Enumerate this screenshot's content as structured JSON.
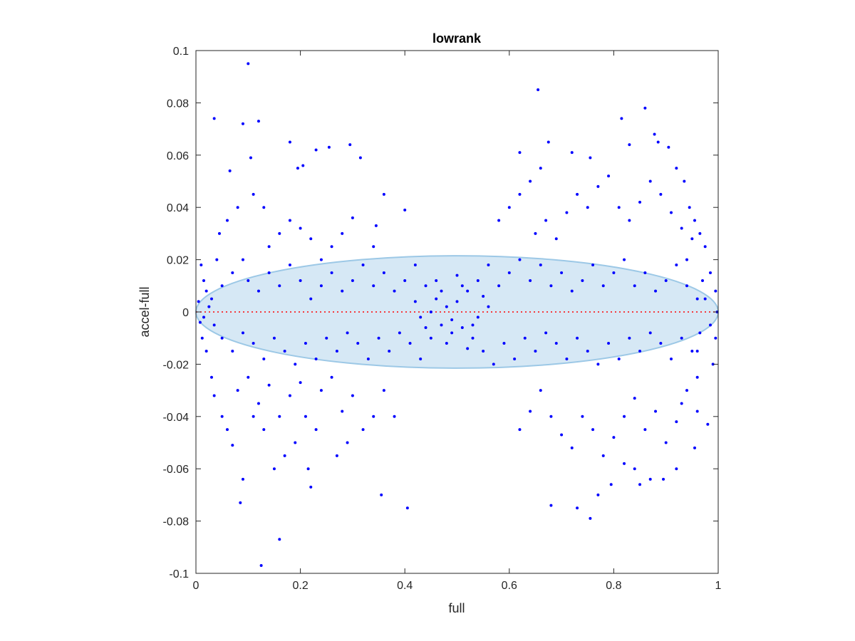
{
  "chart_data": {
    "type": "scatter",
    "title": "lowrank",
    "xlabel": "full",
    "ylabel": "accel-full",
    "xlim": [
      0,
      1
    ],
    "ylim": [
      -0.1,
      0.1
    ],
    "xticks": [
      0,
      0.2,
      0.4,
      0.6,
      0.8,
      1
    ],
    "xtick_labels": [
      "0",
      "0.2",
      "0.4",
      "0.6",
      "0.8",
      "1"
    ],
    "yticks": [
      0.1,
      0.08,
      0.06,
      0.04,
      0.02,
      0,
      -0.02,
      -0.04,
      -0.06,
      -0.08,
      -0.1
    ],
    "ytick_labels": [
      "0.1",
      "0.08",
      "0.06",
      "0.04",
      "0.02",
      "0",
      "-0.02",
      "-0.04",
      "-0.06",
      "-0.08",
      "-0.1"
    ],
    "grid": false,
    "reference_line": {
      "y": 0,
      "style": "dotted",
      "color": "#ff0000"
    },
    "ellipse": {
      "center_x": 0.5,
      "center_y": 0,
      "x_radius": 0.5,
      "y_radius": 0.0215,
      "fill": "#d6e8f5",
      "stroke": "#9cc8e6"
    },
    "series": [
      {
        "color": "#0000ff",
        "points": [
          [
            0.1,
            0.095
          ],
          [
            0.655,
            0.085
          ],
          [
            0.035,
            0.074
          ],
          [
            0.12,
            0.073
          ],
          [
            0.09,
            0.072
          ],
          [
            0.815,
            0.074
          ],
          [
            0.86,
            0.078
          ],
          [
            0.878,
            0.068
          ],
          [
            0.885,
            0.065
          ],
          [
            0.18,
            0.065
          ],
          [
            0.295,
            0.064
          ],
          [
            0.23,
            0.062
          ],
          [
            0.255,
            0.063
          ],
          [
            0.105,
            0.059
          ],
          [
            0.315,
            0.059
          ],
          [
            0.675,
            0.065
          ],
          [
            0.62,
            0.061
          ],
          [
            0.72,
            0.061
          ],
          [
            0.905,
            0.063
          ],
          [
            0.755,
            0.059
          ],
          [
            0.83,
            0.064
          ],
          [
            0.195,
            0.055
          ],
          [
            0.205,
            0.056
          ],
          [
            0.065,
            0.054
          ],
          [
            0.01,
            0.018
          ],
          [
            0.015,
            0.012
          ],
          [
            0.02,
            0.008
          ],
          [
            0.005,
            0.004
          ],
          [
            0.008,
            -0.004
          ],
          [
            0.012,
            -0.01
          ],
          [
            0.02,
            -0.015
          ],
          [
            0.03,
            -0.025
          ],
          [
            0.035,
            -0.032
          ],
          [
            0.05,
            -0.04
          ],
          [
            0.06,
            -0.045
          ],
          [
            0.07,
            -0.051
          ],
          [
            0.09,
            -0.064
          ],
          [
            0.085,
            -0.073
          ],
          [
            0.16,
            -0.087
          ],
          [
            0.125,
            -0.097
          ],
          [
            0.22,
            -0.067
          ],
          [
            0.215,
            -0.06
          ],
          [
            0.355,
            -0.07
          ],
          [
            0.405,
            -0.075
          ],
          [
            0.68,
            -0.074
          ],
          [
            0.73,
            -0.075
          ],
          [
            0.755,
            -0.079
          ],
          [
            0.77,
            -0.07
          ],
          [
            0.795,
            -0.066
          ],
          [
            0.85,
            -0.066
          ],
          [
            0.87,
            -0.064
          ],
          [
            0.895,
            -0.064
          ],
          [
            0.84,
            -0.06
          ],
          [
            0.82,
            -0.058
          ],
          [
            0.92,
            -0.06
          ],
          [
            0.955,
            -0.052
          ],
          [
            0.93,
            -0.035
          ],
          [
            0.96,
            -0.038
          ],
          [
            0.98,
            -0.043
          ],
          [
            0.99,
            -0.02
          ],
          [
            0.995,
            -0.01
          ],
          [
            0.998,
            0.0
          ],
          [
            0.995,
            0.008
          ],
          [
            0.985,
            0.015
          ],
          [
            0.975,
            0.025
          ],
          [
            0.965,
            0.03
          ],
          [
            0.955,
            0.035
          ],
          [
            0.945,
            0.04
          ],
          [
            0.935,
            0.05
          ],
          [
            0.92,
            0.055
          ],
          [
            0.4,
            0.039
          ],
          [
            0.36,
            0.045
          ],
          [
            0.345,
            0.033
          ],
          [
            0.34,
            0.025
          ],
          [
            0.3,
            0.036
          ],
          [
            0.28,
            0.03
          ],
          [
            0.26,
            0.025
          ],
          [
            0.24,
            0.02
          ],
          [
            0.22,
            0.028
          ],
          [
            0.2,
            0.032
          ],
          [
            0.18,
            0.035
          ],
          [
            0.16,
            0.03
          ],
          [
            0.14,
            0.025
          ],
          [
            0.13,
            0.04
          ],
          [
            0.11,
            0.045
          ],
          [
            0.08,
            0.04
          ],
          [
            0.06,
            0.035
          ],
          [
            0.045,
            0.03
          ],
          [
            0.04,
            0.02
          ],
          [
            0.05,
            0.01
          ],
          [
            0.07,
            0.015
          ],
          [
            0.09,
            0.02
          ],
          [
            0.1,
            0.012
          ],
          [
            0.12,
            0.008
          ],
          [
            0.14,
            0.015
          ],
          [
            0.16,
            0.01
          ],
          [
            0.18,
            0.018
          ],
          [
            0.2,
            0.012
          ],
          [
            0.22,
            0.005
          ],
          [
            0.24,
            0.01
          ],
          [
            0.26,
            0.015
          ],
          [
            0.28,
            0.008
          ],
          [
            0.3,
            0.012
          ],
          [
            0.32,
            0.018
          ],
          [
            0.34,
            0.01
          ],
          [
            0.36,
            0.015
          ],
          [
            0.38,
            0.008
          ],
          [
            0.4,
            0.012
          ],
          [
            0.42,
            0.018
          ],
          [
            0.44,
            0.01
          ],
          [
            0.46,
            0.005
          ],
          [
            0.48,
            0.002
          ],
          [
            0.5,
            0.004
          ],
          [
            0.52,
            0.008
          ],
          [
            0.54,
            0.012
          ],
          [
            0.56,
            0.018
          ],
          [
            0.58,
            0.01
          ],
          [
            0.6,
            0.015
          ],
          [
            0.62,
            0.02
          ],
          [
            0.64,
            0.012
          ],
          [
            0.66,
            0.018
          ],
          [
            0.68,
            0.01
          ],
          [
            0.7,
            0.015
          ],
          [
            0.72,
            0.008
          ],
          [
            0.74,
            0.012
          ],
          [
            0.76,
            0.018
          ],
          [
            0.78,
            0.01
          ],
          [
            0.8,
            0.015
          ],
          [
            0.82,
            0.02
          ],
          [
            0.84,
            0.01
          ],
          [
            0.86,
            0.015
          ],
          [
            0.88,
            0.008
          ],
          [
            0.9,
            0.012
          ],
          [
            0.92,
            0.018
          ],
          [
            0.94,
            0.01
          ],
          [
            0.96,
            0.005
          ],
          [
            0.05,
            -0.01
          ],
          [
            0.07,
            -0.015
          ],
          [
            0.09,
            -0.008
          ],
          [
            0.11,
            -0.012
          ],
          [
            0.13,
            -0.018
          ],
          [
            0.15,
            -0.01
          ],
          [
            0.17,
            -0.015
          ],
          [
            0.19,
            -0.02
          ],
          [
            0.21,
            -0.012
          ],
          [
            0.23,
            -0.018
          ],
          [
            0.25,
            -0.01
          ],
          [
            0.27,
            -0.015
          ],
          [
            0.29,
            -0.008
          ],
          [
            0.31,
            -0.012
          ],
          [
            0.33,
            -0.018
          ],
          [
            0.35,
            -0.01
          ],
          [
            0.37,
            -0.015
          ],
          [
            0.39,
            -0.008
          ],
          [
            0.41,
            -0.012
          ],
          [
            0.43,
            -0.018
          ],
          [
            0.45,
            -0.01
          ],
          [
            0.47,
            -0.005
          ],
          [
            0.49,
            -0.003
          ],
          [
            0.51,
            -0.006
          ],
          [
            0.53,
            -0.01
          ],
          [
            0.55,
            -0.015
          ],
          [
            0.57,
            -0.02
          ],
          [
            0.59,
            -0.012
          ],
          [
            0.61,
            -0.018
          ],
          [
            0.63,
            -0.01
          ],
          [
            0.65,
            -0.015
          ],
          [
            0.67,
            -0.008
          ],
          [
            0.69,
            -0.012
          ],
          [
            0.71,
            -0.018
          ],
          [
            0.73,
            -0.01
          ],
          [
            0.75,
            -0.015
          ],
          [
            0.77,
            -0.02
          ],
          [
            0.79,
            -0.012
          ],
          [
            0.81,
            -0.018
          ],
          [
            0.83,
            -0.01
          ],
          [
            0.85,
            -0.015
          ],
          [
            0.87,
            -0.008
          ],
          [
            0.89,
            -0.012
          ],
          [
            0.91,
            -0.018
          ],
          [
            0.93,
            -0.01
          ],
          [
            0.95,
            -0.015
          ],
          [
            0.08,
            -0.03
          ],
          [
            0.1,
            -0.025
          ],
          [
            0.12,
            -0.035
          ],
          [
            0.14,
            -0.028
          ],
          [
            0.16,
            -0.04
          ],
          [
            0.18,
            -0.032
          ],
          [
            0.2,
            -0.027
          ],
          [
            0.24,
            -0.03
          ],
          [
            0.26,
            -0.025
          ],
          [
            0.28,
            -0.038
          ],
          [
            0.3,
            -0.032
          ],
          [
            0.32,
            -0.045
          ],
          [
            0.34,
            -0.04
          ],
          [
            0.36,
            -0.03
          ],
          [
            0.38,
            -0.04
          ],
          [
            0.29,
            -0.05
          ],
          [
            0.27,
            -0.055
          ],
          [
            0.23,
            -0.045
          ],
          [
            0.21,
            -0.04
          ],
          [
            0.19,
            -0.05
          ],
          [
            0.17,
            -0.055
          ],
          [
            0.15,
            -0.06
          ],
          [
            0.13,
            -0.045
          ],
          [
            0.11,
            -0.04
          ],
          [
            0.62,
            -0.045
          ],
          [
            0.64,
            -0.038
          ],
          [
            0.66,
            -0.03
          ],
          [
            0.68,
            -0.04
          ],
          [
            0.7,
            -0.047
          ],
          [
            0.72,
            -0.052
          ],
          [
            0.74,
            -0.04
          ],
          [
            0.76,
            -0.045
          ],
          [
            0.78,
            -0.055
          ],
          [
            0.8,
            -0.048
          ],
          [
            0.82,
            -0.04
          ],
          [
            0.84,
            -0.033
          ],
          [
            0.86,
            -0.045
          ],
          [
            0.88,
            -0.038
          ],
          [
            0.9,
            -0.05
          ],
          [
            0.92,
            -0.042
          ],
          [
            0.94,
            -0.03
          ],
          [
            0.96,
            -0.025
          ],
          [
            0.65,
            0.03
          ],
          [
            0.67,
            0.035
          ],
          [
            0.69,
            0.028
          ],
          [
            0.71,
            0.038
          ],
          [
            0.73,
            0.045
          ],
          [
            0.75,
            0.04
          ],
          [
            0.77,
            0.048
          ],
          [
            0.79,
            0.052
          ],
          [
            0.81,
            0.04
          ],
          [
            0.83,
            0.035
          ],
          [
            0.85,
            0.042
          ],
          [
            0.87,
            0.05
          ],
          [
            0.89,
            0.045
          ],
          [
            0.91,
            0.038
          ],
          [
            0.93,
            0.032
          ],
          [
            0.95,
            0.028
          ],
          [
            0.6,
            0.04
          ],
          [
            0.58,
            0.035
          ],
          [
            0.62,
            0.045
          ],
          [
            0.64,
            0.05
          ],
          [
            0.66,
            0.055
          ],
          [
            0.45,
            0.0
          ],
          [
            0.47,
            0.008
          ],
          [
            0.49,
            -0.008
          ],
          [
            0.51,
            0.01
          ],
          [
            0.53,
            -0.005
          ],
          [
            0.55,
            0.006
          ],
          [
            0.44,
            -0.006
          ],
          [
            0.46,
            0.012
          ],
          [
            0.48,
            -0.012
          ],
          [
            0.5,
            0.014
          ],
          [
            0.52,
            -0.014
          ],
          [
            0.42,
            0.004
          ],
          [
            0.54,
            -0.002
          ],
          [
            0.56,
            0.002
          ],
          [
            0.43,
            -0.002
          ],
          [
            0.035,
            -0.005
          ],
          [
            0.025,
            0.002
          ],
          [
            0.015,
            -0.002
          ],
          [
            0.03,
            0.005
          ],
          [
            0.985,
            -0.005
          ],
          [
            0.975,
            0.005
          ],
          [
            0.965,
            -0.008
          ],
          [
            0.97,
            0.012
          ],
          [
            0.96,
            -0.015
          ],
          [
            0.94,
            0.02
          ]
        ]
      }
    ]
  }
}
